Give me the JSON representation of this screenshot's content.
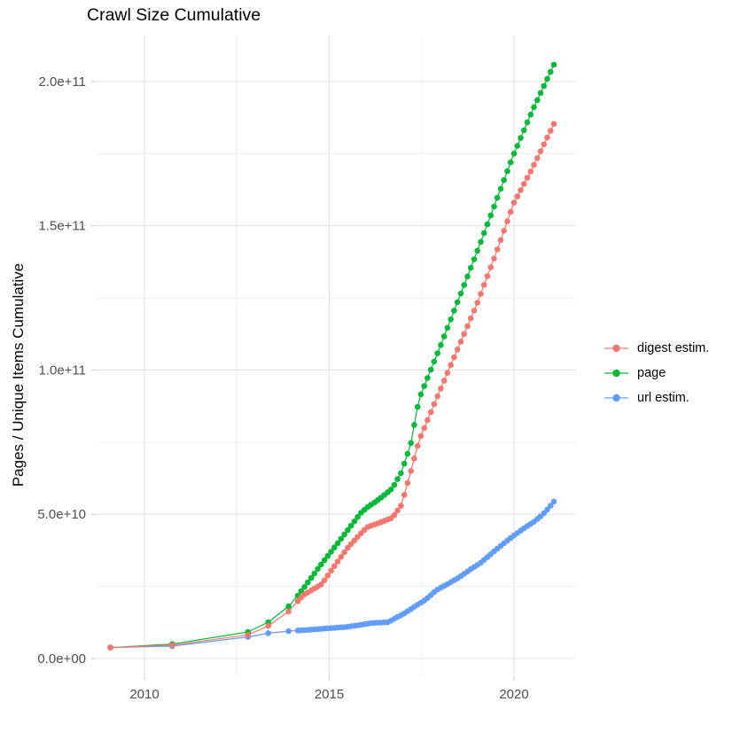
{
  "title": "Crawl Size Cumulative",
  "legend": {
    "items": [
      {
        "label": "digest estim."
      },
      {
        "label": "page"
      },
      {
        "label": "url estim."
      }
    ]
  },
  "colors": {
    "background": "#ffffff",
    "grid_major": "#e3e3e3",
    "grid_minor": "#efefef",
    "tick": "#cccccc",
    "axis_text": "#4d4d4d",
    "text": "#000000",
    "digest": "#F8766D",
    "page": "#00BA38",
    "url": "#619CFF"
  },
  "chart_data": {
    "type": "line",
    "title": "Crawl Size Cumulative",
    "xlabel": "",
    "ylabel": "Pages / Unique Items Cumulative",
    "legend_position": "right",
    "grid": true,
    "x_axis": {
      "range_years": [
        2008.65,
        2021.67
      ],
      "major_ticks": [
        {
          "year": 2010,
          "label": "2010"
        },
        {
          "year": 2015,
          "label": "2015"
        },
        {
          "year": 2020,
          "label": "2020"
        }
      ],
      "minor_tick_years": [
        2012.5,
        2017.5
      ]
    },
    "y_axis": {
      "unit": "pages / unique items (cumulative)",
      "range_billions": [
        -6.3,
        216
      ],
      "major_ticks": [
        {
          "value_billions": 0,
          "label": "0.0e+00"
        },
        {
          "value_billions": 50,
          "label": "5.0e+10"
        },
        {
          "value_billions": 100,
          "label": "1.0e+11"
        },
        {
          "value_billions": 150,
          "label": "1.5e+11"
        },
        {
          "value_billions": 200,
          "label": "2.0e+11"
        }
      ],
      "minor_tick_billions": [
        25,
        75,
        125,
        175
      ]
    },
    "sampling": {
      "sparse_years": [
        2009.08,
        2010.75,
        2012.8,
        2013.35,
        2013.9
      ],
      "dense_from": 2014.15,
      "dense_step_years": 0.09,
      "end_year": 2021.08
    },
    "draw_order": [
      "page",
      "url estim.",
      "digest estim."
    ],
    "series": [
      {
        "name": "digest estim.",
        "color": "#F8766D",
        "anchors_year_billions": [
          [
            2009.08,
            3.8
          ],
          [
            2010.75,
            4.6
          ],
          [
            2012.8,
            8.2
          ],
          [
            2013.35,
            11.3
          ],
          [
            2013.9,
            16.3
          ],
          [
            2014.3,
            22.0
          ],
          [
            2014.8,
            25.8
          ],
          [
            2015.03,
            30.1
          ],
          [
            2015.5,
            38.4
          ],
          [
            2015.83,
            43.0
          ],
          [
            2016.02,
            45.5
          ],
          [
            2016.35,
            47.0
          ],
          [
            2016.71,
            48.8
          ],
          [
            2016.95,
            53.1
          ],
          [
            2017.2,
            64.5
          ],
          [
            2017.43,
            75.6
          ],
          [
            2017.9,
            90.0
          ],
          [
            2018.5,
            108.0
          ],
          [
            2019.0,
            123.0
          ],
          [
            2019.5,
            140.0
          ],
          [
            2020.0,
            158.0
          ],
          [
            2020.5,
            170.0
          ],
          [
            2021.08,
            185.3
          ]
        ]
      },
      {
        "name": "page",
        "color": "#00BA38",
        "anchors_year_billions": [
          [
            2009.08,
            3.8
          ],
          [
            2010.75,
            5.0
          ],
          [
            2012.8,
            9.2
          ],
          [
            2013.35,
            12.6
          ],
          [
            2013.9,
            18.1
          ],
          [
            2014.15,
            21.8
          ],
          [
            2014.4,
            26.0
          ],
          [
            2014.72,
            31.6
          ],
          [
            2015.08,
            37.5
          ],
          [
            2015.56,
            45.5
          ],
          [
            2015.85,
            50.4
          ],
          [
            2016.04,
            52.5
          ],
          [
            2016.36,
            55.3
          ],
          [
            2016.71,
            59.0
          ],
          [
            2016.95,
            64.5
          ],
          [
            2017.2,
            74.0
          ],
          [
            2017.43,
            90.0
          ],
          [
            2018.0,
            108.0
          ],
          [
            2019.0,
            141.0
          ],
          [
            2019.5,
            158.0
          ],
          [
            2020.0,
            175.0
          ],
          [
            2020.5,
            190.0
          ],
          [
            2021.08,
            205.8
          ]
        ]
      },
      {
        "name": "url estim.",
        "color": "#619CFF",
        "anchors_year_billions": [
          [
            2009.08,
            3.8
          ],
          [
            2010.75,
            4.3
          ],
          [
            2012.8,
            7.5
          ],
          [
            2013.35,
            8.8
          ],
          [
            2013.9,
            9.5
          ],
          [
            2014.5,
            10.0
          ],
          [
            2015.0,
            10.5
          ],
          [
            2015.5,
            11.0
          ],
          [
            2016.16,
            12.3
          ],
          [
            2016.6,
            12.6
          ],
          [
            2016.76,
            13.8
          ],
          [
            2017.0,
            15.4
          ],
          [
            2017.36,
            18.4
          ],
          [
            2017.6,
            20.3
          ],
          [
            2017.9,
            23.7
          ],
          [
            2018.2,
            25.8
          ],
          [
            2018.5,
            28.0
          ],
          [
            2018.8,
            30.7
          ],
          [
            2019.1,
            33.2
          ],
          [
            2019.52,
            37.8
          ],
          [
            2019.88,
            41.5
          ],
          [
            2020.24,
            44.9
          ],
          [
            2020.53,
            47.3
          ],
          [
            2020.77,
            49.8
          ],
          [
            2020.96,
            52.5
          ],
          [
            2021.08,
            54.4
          ]
        ]
      }
    ]
  }
}
